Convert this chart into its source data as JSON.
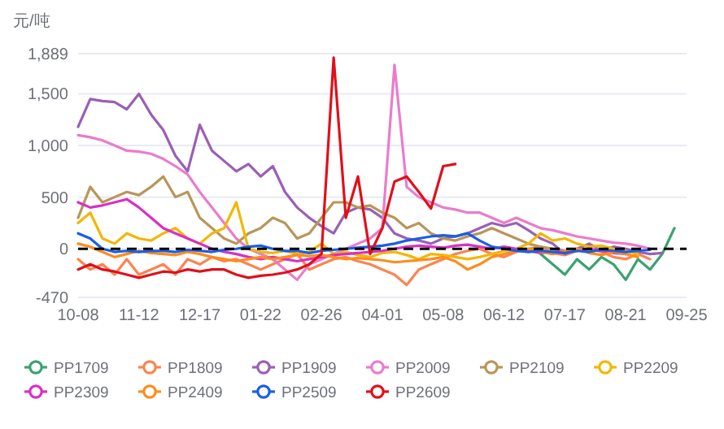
{
  "chart_data": {
    "type": "line",
    "ylabel": "元/吨",
    "categories": [
      "10-08",
      null,
      null,
      null,
      null,
      "11-12",
      null,
      null,
      null,
      null,
      "12-17",
      null,
      null,
      null,
      null,
      "01-22",
      null,
      null,
      null,
      null,
      "02-26",
      null,
      null,
      null,
      null,
      "04-01",
      null,
      null,
      null,
      null,
      "05-08",
      null,
      null,
      null,
      null,
      "06-12",
      null,
      null,
      null,
      null,
      "07-17",
      null,
      null,
      null,
      null,
      "08-21",
      null,
      null,
      null,
      null,
      "09-25"
    ],
    "ylim": [
      -470,
      1889
    ],
    "yticks": [
      {
        "value": -470,
        "label": "-470"
      },
      0,
      500,
      {
        "value": 1000,
        "label": "1,000"
      },
      {
        "value": 1500,
        "label": "1,500"
      },
      {
        "value": 1889,
        "label": "1,889"
      }
    ],
    "grid": "y",
    "legend": "bottom",
    "ref_lines": [
      {
        "axis": "y",
        "value": 0,
        "color": "#000000",
        "line_style": "dashed"
      }
    ],
    "series": [
      {
        "name": "PP1709",
        "color": "#3ba272",
        "values": [
          null,
          null,
          null,
          null,
          null,
          null,
          null,
          null,
          null,
          null,
          null,
          null,
          null,
          null,
          null,
          null,
          null,
          null,
          null,
          null,
          null,
          null,
          null,
          null,
          null,
          null,
          null,
          null,
          null,
          null,
          null,
          null,
          null,
          null,
          null,
          null,
          null,
          null,
          -50,
          -150,
          -250,
          -100,
          -200,
          -80,
          -150,
          -300,
          -100,
          -200,
          -50,
          200,
          null
        ]
      },
      {
        "name": "PP1809",
        "color": "#fc8452",
        "values": [
          -100,
          -200,
          -150,
          -250,
          -100,
          -250,
          -200,
          -150,
          -250,
          -100,
          -150,
          -80,
          -120,
          -100,
          -150,
          -200,
          -150,
          -100,
          -50,
          -200,
          -150,
          -100,
          -80,
          -120,
          -150,
          -200,
          -250,
          -350,
          -200,
          -150,
          -100,
          -50,
          -20,
          0,
          -50,
          -80,
          -30,
          0,
          20,
          -40,
          -60,
          -20,
          0,
          -30,
          -80,
          -100,
          -50,
          -100,
          null,
          null,
          null
        ]
      },
      {
        "name": "PP1909",
        "color": "#9a60b4",
        "values": [
          1180,
          1450,
          1430,
          1420,
          1350,
          1500,
          1300,
          1150,
          900,
          750,
          1200,
          950,
          850,
          750,
          820,
          700,
          800,
          550,
          400,
          300,
          220,
          150,
          350,
          400,
          380,
          300,
          150,
          100,
          80,
          50,
          100,
          120,
          150,
          200,
          250,
          220,
          250,
          180,
          100,
          50,
          -50,
          0,
          50,
          -20,
          20,
          0,
          -30,
          -50,
          -40,
          null,
          null
        ]
      },
      {
        "name": "PP2009",
        "color": "#ea7ccc",
        "values": [
          1100,
          1080,
          1050,
          1000,
          950,
          940,
          920,
          870,
          800,
          720,
          550,
          400,
          250,
          100,
          0,
          -50,
          -100,
          -200,
          -300,
          -150,
          -100,
          -50,
          0,
          50,
          100,
          200,
          1780,
          600,
          500,
          450,
          400,
          380,
          350,
          350,
          300,
          250,
          300,
          250,
          200,
          180,
          150,
          120,
          100,
          80,
          60,
          50,
          30,
          0,
          null,
          null,
          null
        ]
      },
      {
        "name": "PP2109",
        "color": "#b8965a",
        "values": [
          300,
          600,
          450,
          500,
          550,
          520,
          600,
          700,
          500,
          550,
          300,
          200,
          100,
          50,
          150,
          200,
          300,
          250,
          100,
          150,
          300,
          450,
          450,
          400,
          420,
          350,
          300,
          200,
          250,
          150,
          100,
          80,
          120,
          150,
          200,
          150,
          100,
          50,
          20,
          0,
          -20,
          0,
          -30,
          0,
          -10,
          null,
          null,
          null,
          null,
          null,
          null
        ]
      },
      {
        "name": "PP2209",
        "color": "#f2b705",
        "values": [
          250,
          350,
          100,
          50,
          150,
          100,
          80,
          150,
          200,
          100,
          50,
          150,
          200,
          450,
          0,
          -30,
          -40,
          -20,
          -50,
          -30,
          50,
          -50,
          -30,
          -60,
          -80,
          -40,
          -30,
          -60,
          -100,
          -50,
          -60,
          -80,
          -100,
          -80,
          -50,
          -20,
          0,
          50,
          150,
          80,
          100,
          50,
          20,
          30,
          0,
          -20,
          -50,
          null,
          null,
          null,
          null
        ]
      },
      {
        "name": "PP2309",
        "color": "#d930c5",
        "values": [
          450,
          400,
          420,
          450,
          480,
          400,
          300,
          200,
          150,
          100,
          50,
          0,
          -30,
          -50,
          -80,
          -100,
          -80,
          -100,
          -120,
          -100,
          -80,
          -60,
          -50,
          -40,
          -30,
          -20,
          0,
          20,
          30,
          20,
          10,
          30,
          40,
          20,
          0,
          20,
          0,
          -20,
          -40,
          -30,
          -20,
          -10,
          0,
          -20,
          -40,
          -50,
          null,
          null,
          null,
          null,
          null
        ]
      },
      {
        "name": "PP2409",
        "color": "#ff8c1a",
        "values": [
          50,
          20,
          -30,
          -80,
          -50,
          -20,
          -40,
          -50,
          -60,
          -30,
          -50,
          -80,
          -100,
          -120,
          -100,
          -80,
          -100,
          -80,
          -60,
          -70,
          -60,
          -80,
          -100,
          -90,
          -100,
          -110,
          -130,
          -120,
          -110,
          -100,
          -80,
          -120,
          -200,
          -150,
          -80,
          -50,
          -20,
          0,
          -30,
          -50,
          -20,
          0,
          -40,
          -60,
          -30,
          -50,
          -80,
          null,
          null,
          null,
          null
        ]
      },
      {
        "name": "PP2509",
        "color": "#1a5ee6",
        "values": [
          150,
          100,
          0,
          -30,
          -20,
          -30,
          -20,
          -20,
          -30,
          -10,
          -20,
          -30,
          -10,
          0,
          20,
          30,
          0,
          -20,
          -20,
          -40,
          -20,
          -10,
          0,
          10,
          20,
          30,
          50,
          80,
          100,
          120,
          130,
          120,
          150,
          80,
          20,
          0,
          -20,
          -30,
          -20,
          -30,
          -40,
          -20,
          -30,
          -10,
          -20,
          -30,
          -20,
          -10,
          null,
          null,
          null
        ]
      },
      {
        "name": "PP2609",
        "color": "#e0101a",
        "values": [
          -200,
          -150,
          -200,
          -220,
          -250,
          -280,
          -250,
          -220,
          -230,
          -200,
          -220,
          -200,
          -200,
          -250,
          -280,
          -260,
          -250,
          -230,
          -200,
          -150,
          -50,
          1850,
          300,
          700,
          -50,
          200,
          650,
          700,
          550,
          390,
          800,
          820,
          null,
          null,
          null,
          null,
          null,
          null,
          null,
          null,
          null,
          null,
          null,
          null,
          null,
          null,
          null,
          null,
          null,
          null,
          null
        ]
      }
    ]
  }
}
